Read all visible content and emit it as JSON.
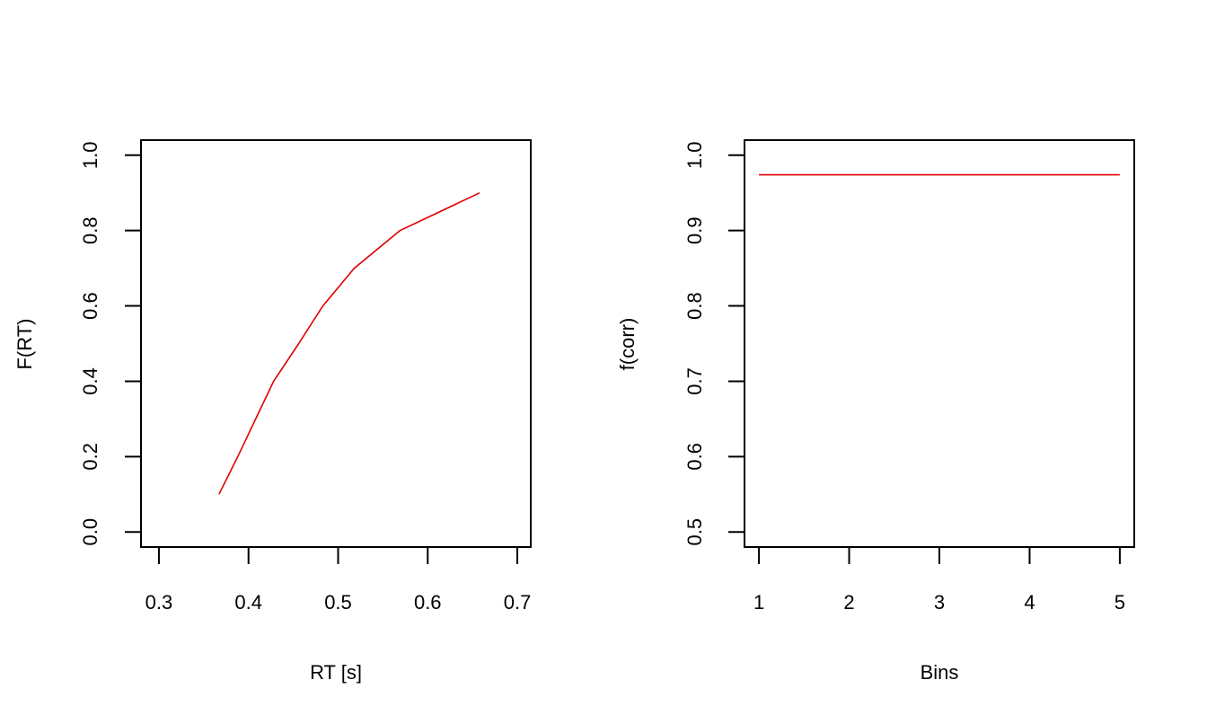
{
  "chart_data": [
    {
      "type": "line",
      "title": "",
      "xlabel": "RT [s]",
      "ylabel": "F(RT)",
      "xlim": [
        0.28,
        0.715
      ],
      "ylim": [
        -0.04,
        1.04
      ],
      "x_ticks": [
        "0.3",
        "0.4",
        "0.5",
        "0.6",
        "0.7"
      ],
      "y_ticks": [
        "0.0",
        "0.2",
        "0.4",
        "0.6",
        "0.8",
        "1.0"
      ],
      "grid": false,
      "legend": null,
      "series": [
        {
          "name": "F(RT)",
          "color": "#e00000",
          "x": [
            0.367,
            0.388,
            0.408,
            0.428,
            0.456,
            0.483,
            0.518,
            0.569,
            0.658
          ],
          "y": [
            0.1,
            0.2,
            0.3,
            0.4,
            0.5,
            0.6,
            0.7,
            0.8,
            0.9
          ]
        }
      ]
    },
    {
      "type": "line",
      "title": "",
      "xlabel": "Bins",
      "ylabel": "f(corr)",
      "xlim": [
        0.84,
        5.16
      ],
      "ylim": [
        0.48,
        1.02
      ],
      "x_ticks": [
        "1",
        "2",
        "3",
        "4",
        "5"
      ],
      "y_ticks": [
        "0.5",
        "0.6",
        "0.7",
        "0.8",
        "0.9",
        "1.0"
      ],
      "grid": false,
      "legend": null,
      "series": [
        {
          "name": "f(corr)",
          "color": "#e00000",
          "x": [
            1,
            2,
            3,
            4,
            5
          ],
          "y": [
            0.974,
            0.974,
            0.974,
            0.974,
            0.974
          ]
        }
      ]
    }
  ]
}
